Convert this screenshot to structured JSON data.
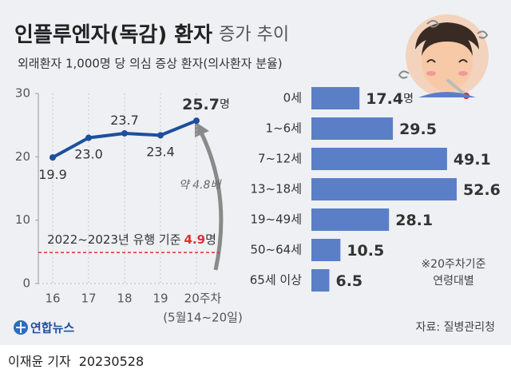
{
  "header": {
    "title": "인플루엔자(독감) 환자",
    "title_suffix": "증가 추이",
    "subtitle": "외래환자 1,000명 당 의심 증상 환자(의사환자 분율)"
  },
  "chart_data": [
    {
      "type": "line",
      "categories": [
        "16",
        "17",
        "18",
        "19",
        "20주차"
      ],
      "x_note": "(5월14~20일)",
      "values": [
        19.9,
        23.0,
        23.7,
        23.4,
        25.7
      ],
      "value_labels": [
        "19.9",
        "23.0",
        "23.7",
        "23.4",
        "25.7"
      ],
      "unit": "명",
      "color": "#1d4f9e",
      "ylim": [
        0,
        30
      ],
      "yticks": [
        0,
        10,
        20,
        30
      ],
      "reference": {
        "value": 4.9,
        "label": "2022~2023년 유행 기준",
        "color": "#e03030"
      },
      "annotation": "약 4.8배"
    },
    {
      "type": "bar",
      "orientation": "horizontal",
      "categories": [
        "0세",
        "1~6세",
        "7~12세",
        "13~18세",
        "19~49세",
        "50~64세",
        "65세 이상"
      ],
      "values": [
        17.4,
        29.5,
        49.1,
        52.6,
        28.1,
        10.5,
        6.5
      ],
      "unit": "명",
      "color": "#5b7fc7",
      "note": [
        "※20주차기준",
        "연령대별"
      ]
    }
  ],
  "footer": {
    "logo": "연합뉴스",
    "source": "자료: 질병관리청",
    "byline": "이재윤 기자",
    "date": "20230528"
  }
}
